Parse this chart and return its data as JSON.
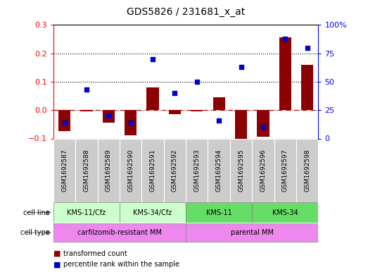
{
  "title": "GDS5826 / 231681_x_at",
  "samples": [
    "GSM1692587",
    "GSM1692588",
    "GSM1692589",
    "GSM1692590",
    "GSM1692591",
    "GSM1692592",
    "GSM1692593",
    "GSM1692594",
    "GSM1692595",
    "GSM1692596",
    "GSM1692597",
    "GSM1692598"
  ],
  "transformed_count": [
    -0.075,
    -0.005,
    -0.045,
    -0.09,
    0.08,
    -0.015,
    -0.005,
    0.045,
    -0.115,
    -0.095,
    0.255,
    0.16
  ],
  "percentile_rank": [
    14,
    43,
    20,
    14,
    70,
    40,
    50,
    16,
    63,
    10,
    88,
    80
  ],
  "ylim_left": [
    -0.1,
    0.3
  ],
  "yticks_left": [
    -0.1,
    0.0,
    0.1,
    0.2,
    0.3
  ],
  "yticks_right": [
    0,
    25,
    50,
    75,
    100
  ],
  "cell_line_groups": [
    {
      "label": "KMS-11/Cfz",
      "start": 0,
      "end": 2,
      "color": "#CCFFCC"
    },
    {
      "label": "KMS-34/Cfz",
      "start": 3,
      "end": 5,
      "color": "#CCFFCC"
    },
    {
      "label": "KMS-11",
      "start": 6,
      "end": 8,
      "color": "#66DD66"
    },
    {
      "label": "KMS-34",
      "start": 9,
      "end": 11,
      "color": "#66DD66"
    }
  ],
  "cell_type_groups": [
    {
      "label": "carfilzomib-resistant MM",
      "start": 0,
      "end": 5,
      "color": "#EE88EE"
    },
    {
      "label": "parental MM",
      "start": 6,
      "end": 11,
      "color": "#EE88EE"
    }
  ],
  "bar_color": "#8B0000",
  "dot_color": "#0000CC",
  "zero_line_color": "#AA0000",
  "background_color": "#FFFFFF",
  "sample_box_color": "#CCCCCC",
  "legend_items": [
    "transformed count",
    "percentile rank within the sample"
  ]
}
